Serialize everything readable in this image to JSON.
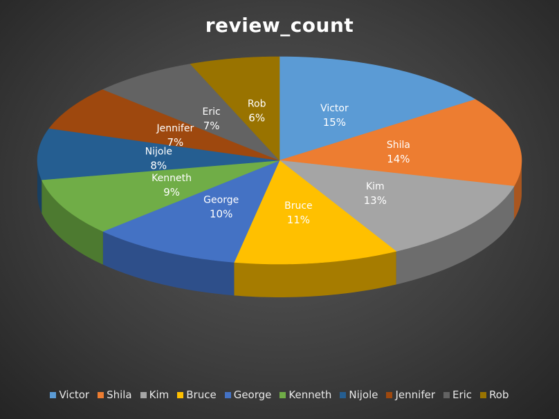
{
  "chart_data": {
    "type": "pie",
    "title": "review_count",
    "slices": [
      {
        "label": "Victor",
        "percent": 15,
        "percent_label": "15%",
        "color": "#5b9bd5",
        "side_color": "#3f6f9a"
      },
      {
        "label": "Shila",
        "percent": 14,
        "percent_label": "14%",
        "color": "#ed7d31",
        "side_color": "#a9561f"
      },
      {
        "label": "Kim",
        "percent": 13,
        "percent_label": "13%",
        "color": "#a5a5a5",
        "side_color": "#6d6d6d"
      },
      {
        "label": "Bruce",
        "percent": 11,
        "percent_label": "11%",
        "color": "#ffc000",
        "side_color": "#a67c00"
      },
      {
        "label": "George",
        "percent": 10,
        "percent_label": "10%",
        "color": "#4472c4",
        "side_color": "#2e4f8a"
      },
      {
        "label": "Kenneth",
        "percent": 9,
        "percent_label": "9%",
        "color": "#70ad47",
        "side_color": "#4d7a30"
      },
      {
        "label": "Nijole",
        "percent": 8,
        "percent_label": "8%",
        "color": "#255e91",
        "side_color": "#183f62"
      },
      {
        "label": "Jennifer",
        "percent": 7,
        "percent_label": "7%",
        "color": "#9e480e",
        "side_color": "#6b2f08"
      },
      {
        "label": "Eric",
        "percent": 7,
        "percent_label": "7%",
        "color": "#636363",
        "side_color": "#404040"
      },
      {
        "label": "Rob",
        "percent": 6,
        "percent_label": "6%",
        "color": "#997300",
        "side_color": "#634a00"
      }
    ],
    "legend_position": "bottom"
  }
}
